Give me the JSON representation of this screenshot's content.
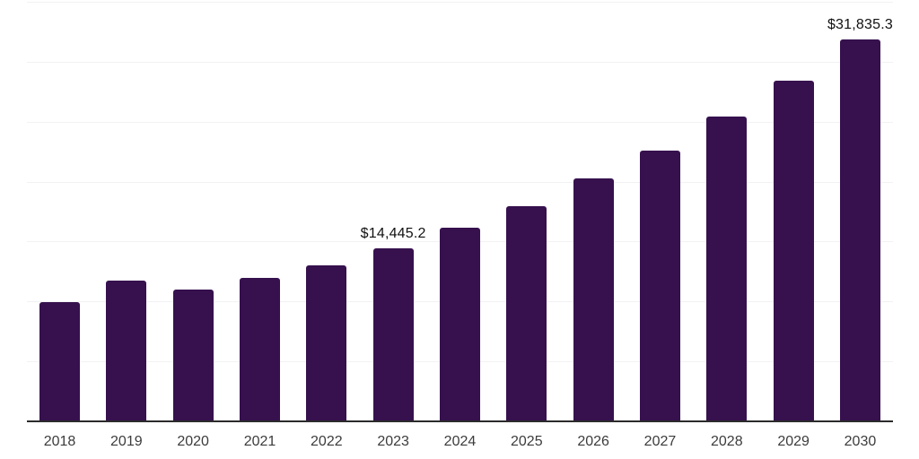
{
  "chart": {
    "background_color": "#ffffff",
    "bar_color": "#36114E",
    "grid_color": "#f2f2f4",
    "axis_color": "#2b2b2b",
    "data_label_color": "#111111",
    "tick_label_color": "#3c3c3c"
  },
  "chart_data": {
    "type": "bar",
    "title": "",
    "xlabel": "",
    "ylabel": "",
    "categories": [
      "2018",
      "2019",
      "2020",
      "2021",
      "2022",
      "2023",
      "2024",
      "2025",
      "2026",
      "2027",
      "2028",
      "2029",
      "2030"
    ],
    "values": [
      9950,
      11750,
      10970,
      11960,
      13010,
      14445.2,
      16150,
      17950,
      20250,
      22550,
      25400,
      28420,
      31835.3
    ],
    "data_labels": [
      "",
      "",
      "",
      "",
      "",
      "$14,445.2",
      "",
      "",
      "",
      "",
      "",
      "",
      "$31,835.3"
    ],
    "ylim": [
      0,
      35000
    ],
    "gridline_values": [
      5000,
      10000,
      15000,
      20000,
      25000,
      30000,
      35000
    ],
    "grid": true,
    "legend": "none",
    "y_axis_tick_labels_shown": false
  }
}
